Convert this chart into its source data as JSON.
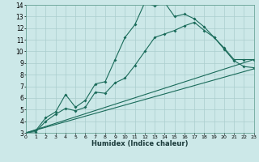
{
  "xlabel": "Humidex (Indice chaleur)",
  "xlim": [
    0,
    23
  ],
  "ylim": [
    3,
    14
  ],
  "xticks": [
    0,
    1,
    2,
    3,
    4,
    5,
    6,
    7,
    8,
    9,
    10,
    11,
    12,
    13,
    14,
    15,
    16,
    17,
    18,
    19,
    20,
    21,
    22,
    23
  ],
  "yticks": [
    3,
    4,
    5,
    6,
    7,
    8,
    9,
    10,
    11,
    12,
    13,
    14
  ],
  "background_color": "#cce8e8",
  "grid_color": "#aacece",
  "line_color": "#1a6b5a",
  "line1_x": [
    0,
    1,
    2,
    3,
    4,
    5,
    6,
    7,
    8,
    9,
    10,
    11,
    12,
    13,
    14,
    15,
    16,
    17,
    18,
    19,
    20,
    21,
    22,
    23
  ],
  "line1_y": [
    3.0,
    3.2,
    4.3,
    4.8,
    6.3,
    5.2,
    5.8,
    7.2,
    7.4,
    9.3,
    11.2,
    12.3,
    14.2,
    13.9,
    14.2,
    13.0,
    13.2,
    12.8,
    12.1,
    11.2,
    10.3,
    9.3,
    9.3,
    9.3
  ],
  "line2_x": [
    0,
    1,
    2,
    3,
    4,
    5,
    6,
    7,
    8,
    9,
    10,
    11,
    12,
    13,
    14,
    15,
    16,
    17,
    18,
    19,
    20,
    21,
    22,
    23
  ],
  "line2_y": [
    3.0,
    3.1,
    4.0,
    4.6,
    5.1,
    4.9,
    5.2,
    6.5,
    6.4,
    7.3,
    7.7,
    8.8,
    10.0,
    11.2,
    11.5,
    11.8,
    12.2,
    12.5,
    11.8,
    11.2,
    10.2,
    9.2,
    8.7,
    8.6
  ],
  "line3_x": [
    0,
    23
  ],
  "line3_y": [
    3.0,
    9.3
  ],
  "line4_x": [
    0,
    23
  ],
  "line4_y": [
    3.0,
    8.5
  ]
}
